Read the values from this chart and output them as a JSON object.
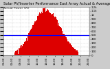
{
  "title": "Solar PV/Inverter Performance East Array Actual & Average Power Output",
  "subtitle": "Actual Power (W)",
  "bg_color": "#cccccc",
  "plot_bg_color": "#ffffff",
  "bar_color": "#dd0000",
  "avg_line_color": "#0000ff",
  "avg_line_y": 0.42,
  "num_bars": 144,
  "max_val": 1.0,
  "title_fontsize": 3.8,
  "subtitle_fontsize": 3.2,
  "tick_fontsize": 2.8,
  "right_labels": [
    "0",
    "100",
    "200",
    "300",
    "400",
    "500",
    "600",
    "700",
    "800",
    "900",
    "1k",
    "1.1k",
    "1.2k"
  ],
  "x_labels": [
    "04:00",
    "06:00",
    "08:00",
    "10:00",
    "12:00",
    "14:00",
    "16:00",
    "18:00",
    "20:00",
    "22:00",
    "24:00"
  ],
  "grid_color": "#aaaaaa",
  "grid_style": ":"
}
